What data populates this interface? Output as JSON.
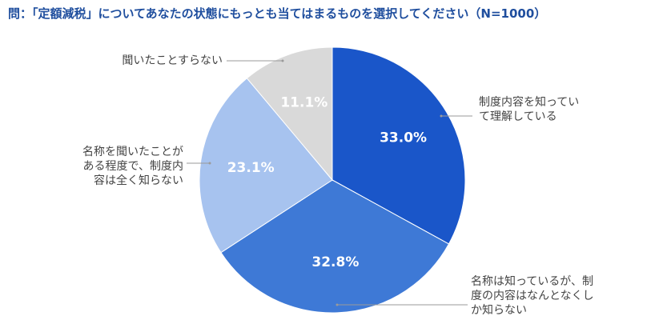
{
  "chart_data": {
    "type": "pie",
    "title": "問：「定額減税」についてあなたの状態にもっとも当てはまるものを選択してください（N=1000）",
    "categories": [
      "制度内容を知っていて理解している",
      "名称は知っているが、制度の内容はなんとなくしか知らない",
      "名称を聞いたことがある程度で、制度内容は全く知らない",
      "聞いたことすらない"
    ],
    "label_lines": [
      [
        "制度内容を知ってい",
        "て理解している"
      ],
      [
        "名称は知っているが、制",
        "度の内容はなんとなくし",
        "か知らない"
      ],
      [
        "名称を聞いたことが",
        "ある程度で、制度内",
        "容は全く知らない"
      ],
      [
        "聞いたことすらない"
      ]
    ],
    "values": [
      33.0,
      32.8,
      23.1,
      11.1
    ],
    "value_labels": [
      "33.0%",
      "32.8%",
      "23.1%",
      "11.1%"
    ],
    "colors": [
      "#1a56c9",
      "#3e79d6",
      "#a7c3ef",
      "#d9d9d9"
    ],
    "label_color": "#444444",
    "value_label_color": "#ffffff",
    "leader_color": "#9a9a9a",
    "start": "12 o'clock",
    "direction": "clockwise"
  }
}
